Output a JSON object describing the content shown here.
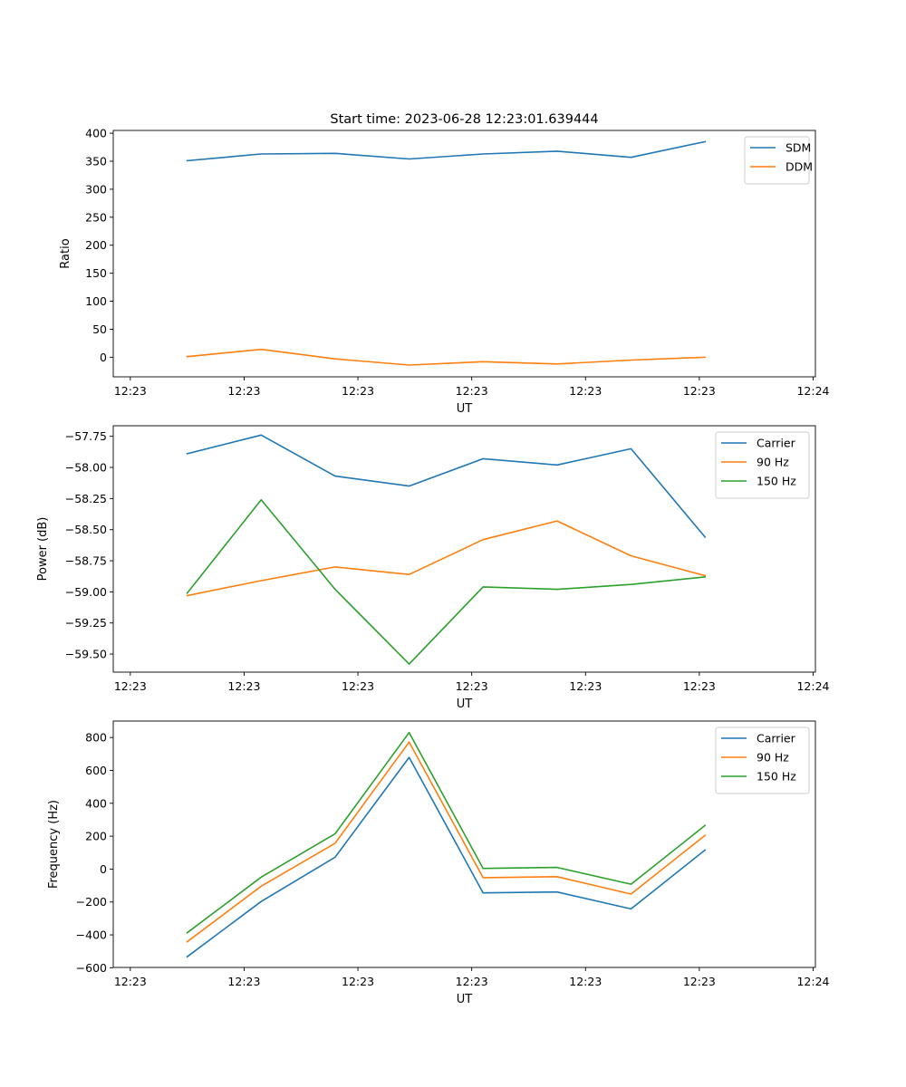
{
  "figure_title": "Start time: 2023-06-28 12:23:01.639444",
  "chart_data": [
    {
      "type": "line",
      "title": "Start time: 2023-06-28 12:23:01.639444",
      "xlabel": "UT",
      "ylabel": "Ratio",
      "x_tick_labels": [
        "12:23",
        "12:23",
        "12:23",
        "12:23",
        "12:23",
        "12:23",
        "12:24"
      ],
      "x_tick_values": [
        0,
        1,
        2,
        3,
        4,
        5,
        6
      ],
      "xlim": [
        -0.15,
        6.02
      ],
      "x": [
        0.5,
        1.15,
        1.8,
        2.45,
        3.1,
        3.75,
        4.4,
        5.05
      ],
      "ylim": [
        -35,
        405
      ],
      "y_ticks": [
        0,
        50,
        100,
        150,
        200,
        250,
        300,
        350,
        400
      ],
      "legend_location": "upper right",
      "series": [
        {
          "name": "SDM",
          "color": "#1f77b4",
          "values": [
            351,
            363,
            364,
            354,
            363,
            368,
            357,
            385
          ]
        },
        {
          "name": "DDM",
          "color": "#ff7f0e",
          "values": [
            1,
            14,
            -3,
            -14,
            -8,
            -12,
            -5,
            0
          ]
        }
      ]
    },
    {
      "type": "line",
      "xlabel": "UT",
      "ylabel": "Power (dB)",
      "x_tick_labels": [
        "12:23",
        "12:23",
        "12:23",
        "12:23",
        "12:23",
        "12:23",
        "12:24"
      ],
      "x_tick_values": [
        0,
        1,
        2,
        3,
        4,
        5,
        6
      ],
      "xlim": [
        -0.15,
        6.02
      ],
      "x": [
        0.5,
        1.15,
        1.8,
        2.45,
        3.1,
        3.75,
        4.4,
        5.05
      ],
      "ylim": [
        -59.645,
        -57.665
      ],
      "y_ticks": [
        -59.5,
        -59.25,
        -59.0,
        -58.75,
        -58.5,
        -58.25,
        -58.0,
        -57.75
      ],
      "y_tick_labels": [
        "−59.50",
        "−59.25",
        "−59.00",
        "−58.75",
        "−58.50",
        "−58.25",
        "−58.00",
        "−57.75"
      ],
      "legend_location": "upper right",
      "series": [
        {
          "name": "Carrier",
          "color": "#1f77b4",
          "values": [
            -57.89,
            -57.74,
            -58.07,
            -58.15,
            -57.93,
            -57.98,
            -57.85,
            -58.56
          ]
        },
        {
          "name": "90 Hz",
          "color": "#ff7f0e",
          "values": [
            -59.03,
            -58.91,
            -58.8,
            -58.86,
            -58.58,
            -58.43,
            -58.71,
            -58.87
          ]
        },
        {
          "name": "150 Hz",
          "color": "#2ca02c",
          "values": [
            -59.01,
            -58.26,
            -58.98,
            -59.58,
            -58.96,
            -58.98,
            -58.94,
            -58.88
          ]
        }
      ]
    },
    {
      "type": "line",
      "xlabel": "UT",
      "ylabel": "Frequency (Hz)",
      "x_tick_labels": [
        "12:23",
        "12:23",
        "12:23",
        "12:23",
        "12:23",
        "12:23",
        "12:24"
      ],
      "x_tick_values": [
        0,
        1,
        2,
        3,
        4,
        5,
        6
      ],
      "xlim": [
        -0.15,
        6.02
      ],
      "x": [
        0.5,
        1.15,
        1.8,
        2.45,
        3.1,
        3.75,
        4.4,
        5.05
      ],
      "ylim": [
        -598,
        900
      ],
      "y_ticks": [
        -600,
        -400,
        -200,
        0,
        200,
        400,
        600,
        800
      ],
      "y_tick_labels": [
        "−600",
        "−400",
        "−200",
        "0",
        "200",
        "400",
        "600",
        "800"
      ],
      "legend_location": "upper right",
      "series": [
        {
          "name": "Carrier",
          "color": "#1f77b4",
          "values": [
            -533,
            -197,
            72,
            679,
            -145,
            -139,
            -242,
            116
          ]
        },
        {
          "name": "90 Hz",
          "color": "#ff7f0e",
          "values": [
            -442,
            -104,
            157,
            772,
            -52,
            -46,
            -152,
            205
          ]
        },
        {
          "name": "150 Hz",
          "color": "#2ca02c",
          "values": [
            -387,
            -49,
            215,
            830,
            4,
            10,
            -92,
            265
          ]
        }
      ]
    }
  ]
}
